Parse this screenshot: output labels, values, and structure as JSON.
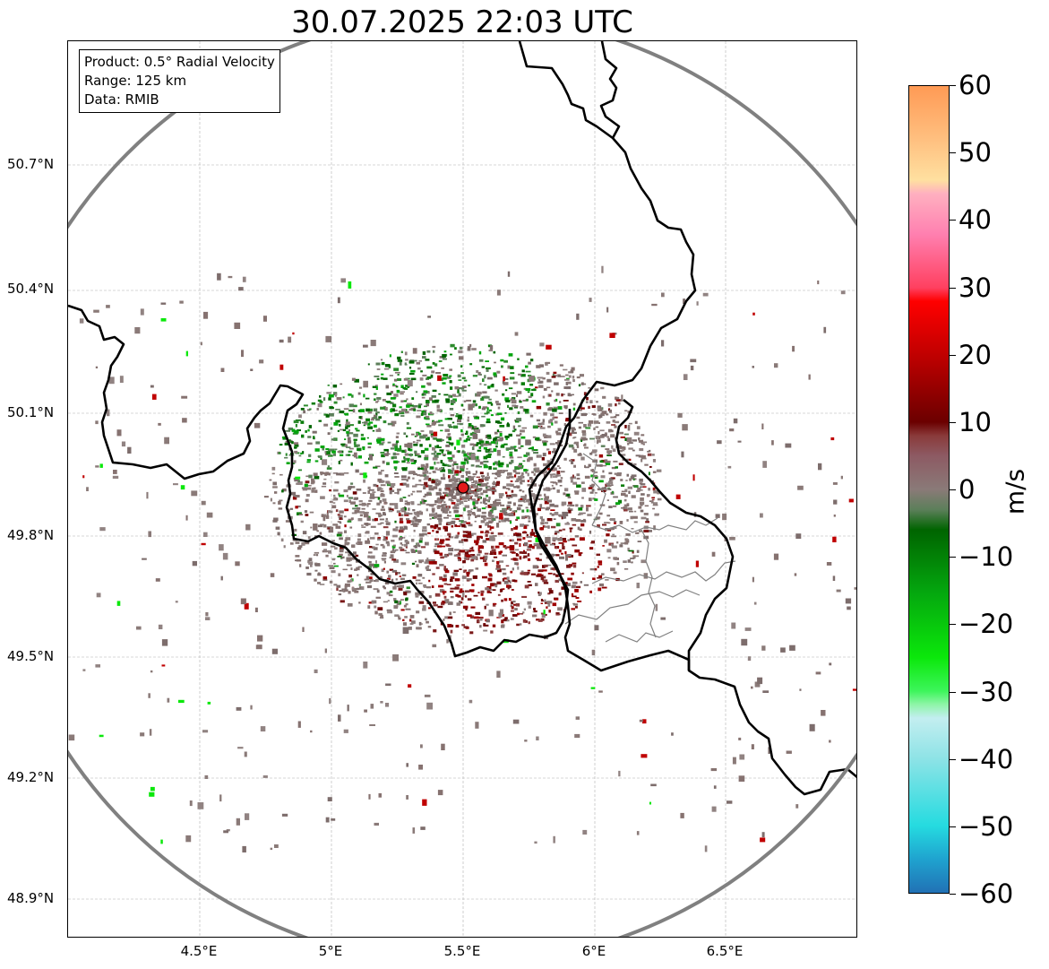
{
  "title": "30.07.2025 22:03 UTC",
  "info": {
    "product": "Product: 0.5° Radial Velocity",
    "range": "Range: 125 km",
    "data": "Data: RMIB"
  },
  "lat_labels": [
    "50.7°N",
    "50.4°N",
    "50.1°N",
    "49.8°N",
    "49.5°N",
    "49.2°N",
    "48.9°N"
  ],
  "lon_labels": [
    "4.5°E",
    "5°E",
    "5.5°E",
    "6°E",
    "6.5°E"
  ],
  "colorbar": {
    "unit": "m/s",
    "range": [
      -60,
      60
    ],
    "tick_labels": [
      "60",
      "50",
      "40",
      "30",
      "20",
      "10",
      "0",
      "−10",
      "−20",
      "−30",
      "−40",
      "−50",
      "−60"
    ],
    "stops": [
      {
        "v": -60,
        "c": "#2171b5"
      },
      {
        "v": -55,
        "c": "#1fa3cf"
      },
      {
        "v": -50,
        "c": "#25dbe0"
      },
      {
        "v": -40,
        "c": "#8ee3e6"
      },
      {
        "v": -34,
        "c": "#c3eef0"
      },
      {
        "v": -32,
        "c": "#8ff5a8"
      },
      {
        "v": -30,
        "c": "#3df55b"
      },
      {
        "v": -25,
        "c": "#0be80b"
      },
      {
        "v": -15,
        "c": "#04a50e"
      },
      {
        "v": -6,
        "c": "#006400"
      },
      {
        "v": -3,
        "c": "#5c7f5a"
      },
      {
        "v": 0,
        "c": "#8a7a78"
      },
      {
        "v": 5,
        "c": "#8d5a63"
      },
      {
        "v": 8,
        "c": "#8a3a3a"
      },
      {
        "v": 10,
        "c": "#6b0000"
      },
      {
        "v": 20,
        "c": "#c00000"
      },
      {
        "v": 28,
        "c": "#ff0000"
      },
      {
        "v": 30,
        "c": "#ff4060"
      },
      {
        "v": 38,
        "c": "#ff80b0"
      },
      {
        "v": 44,
        "c": "#ffb0c0"
      },
      {
        "v": 46,
        "c": "#ffe0a0"
      },
      {
        "v": 52,
        "c": "#ffc080"
      },
      {
        "v": 60,
        "c": "#ff9a55"
      }
    ]
  },
  "map": {
    "colors": {
      "range_ring": "#808080",
      "border": "#000000",
      "province": "#808080",
      "grid": "#b0b0b0",
      "radar_site": "#e31a1c"
    },
    "radar_site_label": "radar-site"
  }
}
